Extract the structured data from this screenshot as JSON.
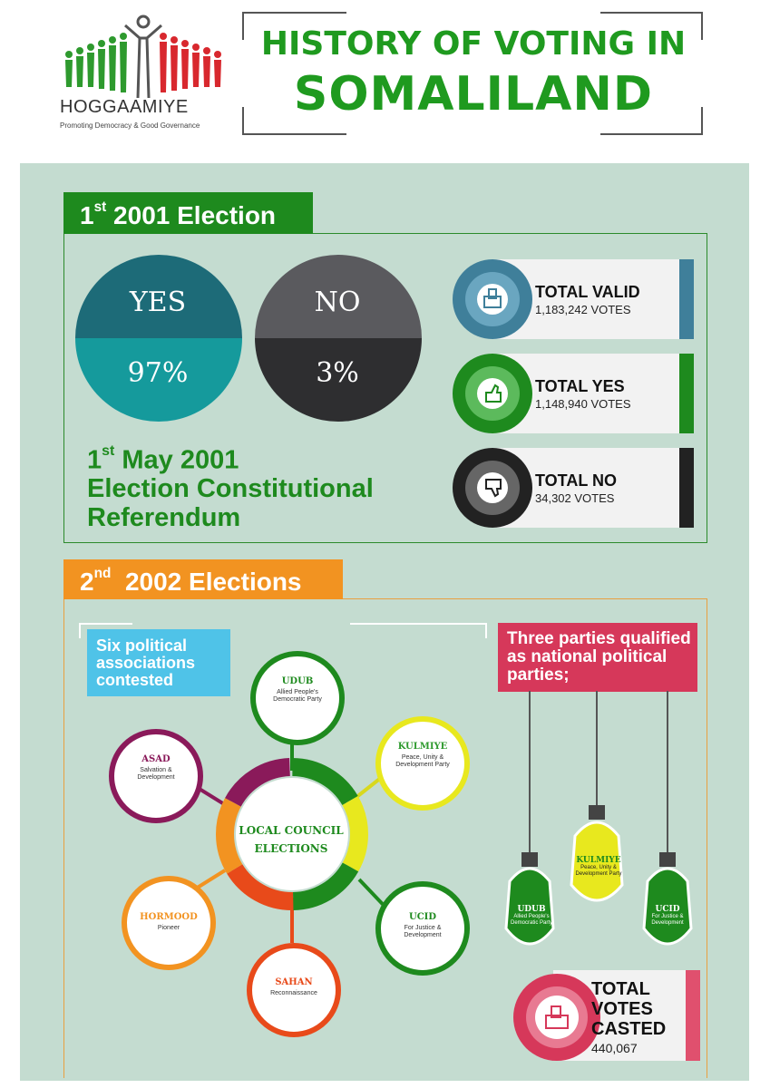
{
  "header": {
    "logo_name": "HOGGAAMIYE",
    "logo_tagline": "Promoting Democracy & Good Governance",
    "title_line1": "HISTORY OF VOTING IN",
    "title_line2": "SOMALILAND"
  },
  "colors": {
    "green": "#1e8a1e",
    "orange": "#f29321",
    "blue": "#4fc3e8",
    "pink": "#d6385a",
    "panel": "#c4dcd0",
    "teal_dark": "#1d6b78",
    "teal": "#159a9c"
  },
  "section1": {
    "tab_ordinal": "1",
    "tab_sup": "st",
    "tab_text": "2001 Election",
    "yes_label": "YES",
    "yes_value": "97%",
    "no_label": "NO",
    "no_value": "3%",
    "caption_ordinal": "1",
    "caption_sup": "st",
    "caption_line1": "May 2001",
    "caption_line2": "Election Constitutional",
    "caption_line3": "Referendum",
    "stats": [
      {
        "label": "TOTAL VALID",
        "value": "1,183,242 VOTES",
        "icon": "ballot-box-icon",
        "color": "#3f7f9a"
      },
      {
        "label": "TOTAL YES",
        "value": "1,148,940 VOTES",
        "icon": "thumbs-up-icon",
        "color": "#1e8a1e"
      },
      {
        "label": "TOTAL NO",
        "value": "34,302 VOTES",
        "icon": "thumbs-down-icon",
        "color": "#222222"
      }
    ]
  },
  "section2": {
    "tab_ordinal": "2",
    "tab_sup": "nd",
    "tab_text": "2002 Elections",
    "six_label": "Six political associations contested",
    "three_label": "Three parties qualified as national political parties;",
    "center_line1": "LOCAL COUNCIL",
    "center_line2": "ELECTIONS",
    "associations": [
      {
        "name": "UDUB",
        "desc": "Allied People's Democratic Party",
        "color": "#1e8a1e"
      },
      {
        "name": "KULMIYE",
        "desc": "Peace, Unity & Development Party",
        "color": "#2e9a2e"
      },
      {
        "name": "UCID",
        "desc": "For Justice & Development",
        "color": "#1e8a1e"
      },
      {
        "name": "SAHAN",
        "desc": "Reconnaissance",
        "color": "#e84a1a"
      },
      {
        "name": "HORMOOD",
        "desc": "Pioneer",
        "color": "#f29321"
      },
      {
        "name": "ASAD",
        "desc": "Salvation & Development",
        "color": "#8a1a5a"
      }
    ],
    "parties": [
      {
        "name": "UDUB",
        "desc": "Allied People's Democratic Party"
      },
      {
        "name": "KULMIYE",
        "desc": "Peace, Unity & Development Party"
      },
      {
        "name": "UCID",
        "desc": "For Justice & Development"
      }
    ],
    "total_label_1": "TOTAL",
    "total_label_2": "VOTES",
    "total_label_3": "CASTED",
    "total_value": "440,067"
  }
}
